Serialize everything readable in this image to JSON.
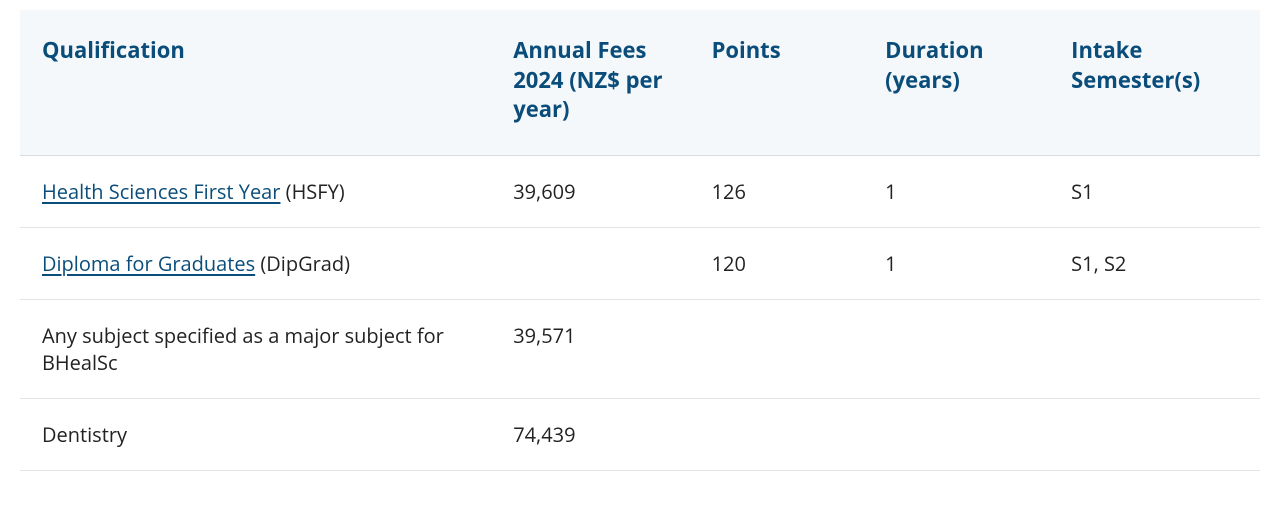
{
  "table": {
    "header_bg": "#f5f8fa",
    "header_color": "#0a4d7a",
    "link_color": "#0a4d7a",
    "columns": [
      {
        "key": "qualification",
        "label": "Qualification"
      },
      {
        "key": "fees",
        "label": "Annual Fees 2024 (NZ$ per year)"
      },
      {
        "key": "points",
        "label": "Points"
      },
      {
        "key": "duration",
        "label": "Duration (years)"
      },
      {
        "key": "intake",
        "label": "Intake Semester(s)"
      }
    ],
    "rows": [
      {
        "qualification_link": "Health Sciences First Year",
        "qualification_suffix": " (HSFY)",
        "fees": "39,609",
        "points": "126",
        "duration": "1",
        "intake": "S1"
      },
      {
        "qualification_link": "Diploma for Graduates",
        "qualification_suffix": " (DipGrad)",
        "fees": "",
        "points": "120",
        "duration": "1",
        "intake": "S1, S2"
      },
      {
        "qualification_link": "",
        "qualification_suffix": "Any subject specified as a major subject for BHealSc",
        "fees": "39,571",
        "points": "",
        "duration": "",
        "intake": ""
      },
      {
        "qualification_link": "",
        "qualification_suffix": "Dentistry",
        "fees": "74,439",
        "points": "",
        "duration": "",
        "intake": ""
      }
    ]
  }
}
